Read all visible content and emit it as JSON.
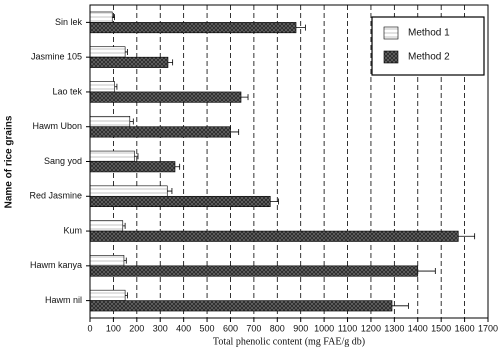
{
  "chart_data": {
    "type": "hbar",
    "xlabel": "Total phenolic content (mg FAE/g db)",
    "ylabel": "Name of rice grains",
    "categories": [
      "Sin lek",
      "Jasmine 105",
      "Lao tek",
      "Hawm Ubon",
      "Sang yod",
      "Red Jasmine",
      "Kum",
      "Hawm kanya",
      "Hawm nil"
    ],
    "series": [
      {
        "name": "Method 1",
        "color": "#d8d8d8",
        "values": [
          95,
          150,
          105,
          170,
          190,
          330,
          140,
          145,
          150
        ],
        "errors": [
          10,
          10,
          10,
          15,
          15,
          20,
          10,
          10,
          10
        ]
      },
      {
        "name": "Method 2",
        "color": "#2a2a2a",
        "values": [
          880,
          333,
          645,
          600,
          363,
          770,
          1573,
          1400,
          1290
        ],
        "errors": [
          40,
          20,
          30,
          35,
          20,
          35,
          70,
          75,
          70
        ]
      }
    ],
    "xlim": [
      0,
      1700
    ],
    "xticks": [
      0,
      100,
      200,
      300,
      400,
      500,
      600,
      700,
      800,
      900,
      1000,
      1100,
      1200,
      1300,
      1400,
      1500,
      1600,
      1700
    ],
    "grid": true,
    "legend": "upper right"
  }
}
